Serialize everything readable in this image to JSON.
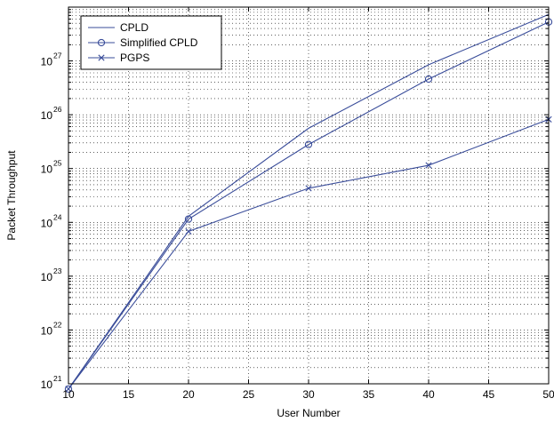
{
  "chart_data": {
    "type": "line",
    "title": "",
    "xlabel": "User Number",
    "ylabel": "Packet Throughput",
    "xlim": [
      10,
      50
    ],
    "ylim_log10": [
      21,
      28
    ],
    "y_scale": "log",
    "grid": true,
    "legend_position": "top-left",
    "x_ticks": [
      10,
      15,
      20,
      25,
      30,
      35,
      40,
      45,
      50
    ],
    "x_tick_labels": [
      "10",
      "15",
      "20",
      "25",
      "30",
      "35",
      "40",
      "45",
      "50"
    ],
    "y_ticks_log10": [
      21,
      22,
      23,
      24,
      25,
      26,
      27
    ],
    "y_tick_labels": [
      {
        "base": "10",
        "exp": "21"
      },
      {
        "base": "10",
        "exp": "22"
      },
      {
        "base": "10",
        "exp": "23"
      },
      {
        "base": "10",
        "exp": "24"
      },
      {
        "base": "10",
        "exp": "25"
      },
      {
        "base": "10",
        "exp": "26"
      },
      {
        "base": "10",
        "exp": "27"
      }
    ],
    "x": [
      10,
      20,
      30,
      40,
      50
    ],
    "series": [
      {
        "name": "CPLD",
        "marker": "none",
        "color": "#3a4d9a",
        "values": [
          8e+20,
          1.3e+24,
          5.6e+25,
          8.5e+26,
          7.3e+27
        ]
      },
      {
        "name": "Simplified CPLD",
        "marker": "circle",
        "color": "#3a4d9a",
        "values": [
          8e+20,
          1.15e+24,
          2.8e+25,
          4.6e+26,
          5.3e+27
        ]
      },
      {
        "name": "PGPS",
        "marker": "x",
        "color": "#3a4d9a",
        "values": [
          8e+20,
          6.8e+23,
          4.3e+24,
          1.15e+25,
          8.2e+25
        ]
      }
    ]
  }
}
